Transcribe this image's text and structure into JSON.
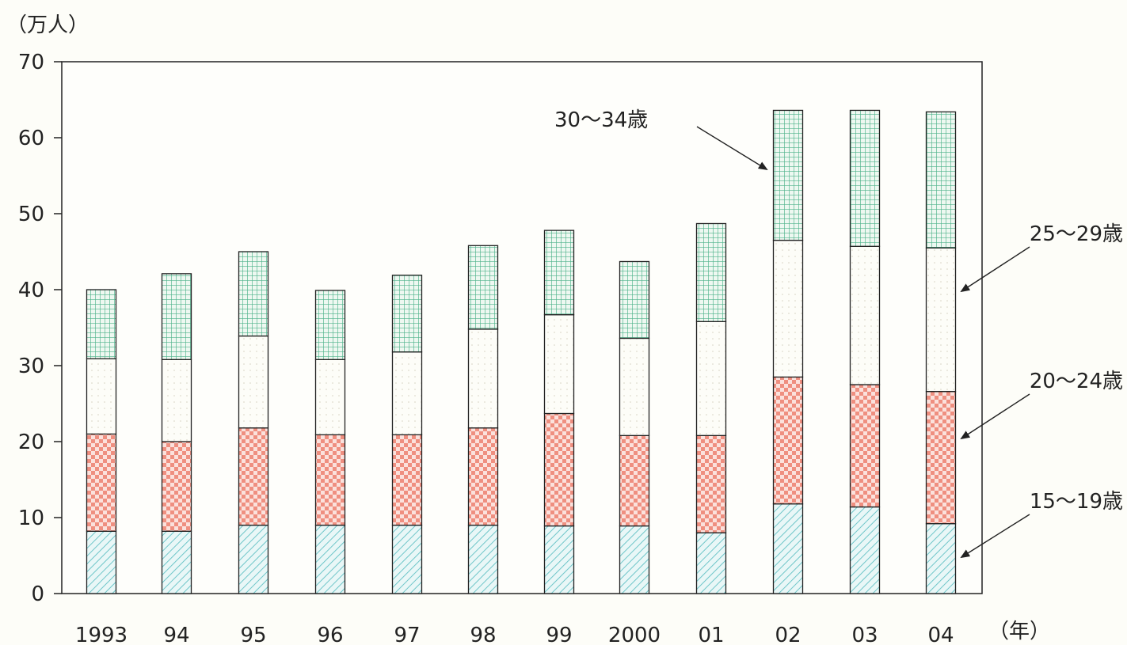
{
  "chart_data": {
    "type": "bar",
    "stacked": true,
    "title": "",
    "ylabel": "（万人）",
    "xlabel": "（年）",
    "ylim": [
      0,
      70
    ],
    "yticks": [
      "0",
      "10",
      "20",
      "30",
      "40",
      "50",
      "60",
      "70"
    ],
    "categories": [
      "1993",
      "94",
      "95",
      "96",
      "97",
      "98",
      "99",
      "2000",
      "01",
      "02",
      "03",
      "04"
    ],
    "series": [
      {
        "name": "15～19歳",
        "color": "#6fc6c9",
        "values": [
          8.2,
          8.2,
          9.0,
          9.0,
          9.0,
          9.0,
          8.9,
          8.9,
          8.0,
          11.8,
          11.4,
          9.2
        ]
      },
      {
        "name": "20～24歳",
        "color": "#ef8f80",
        "values": [
          12.8,
          11.8,
          12.8,
          11.9,
          11.9,
          12.8,
          14.8,
          11.9,
          12.8,
          16.7,
          16.1,
          17.4
        ]
      },
      {
        "name": "25～29歳",
        "color": "#fdfdf8",
        "values": [
          9.9,
          10.8,
          12.1,
          9.9,
          10.9,
          13.0,
          13.0,
          12.8,
          15.0,
          18.0,
          18.2,
          18.9
        ]
      },
      {
        "name": "30～34歳",
        "color": "#4db38a",
        "values": [
          9.1,
          11.3,
          11.1,
          9.1,
          10.1,
          11.0,
          11.1,
          10.1,
          12.9,
          17.1,
          17.9,
          17.9
        ]
      }
    ]
  }
}
